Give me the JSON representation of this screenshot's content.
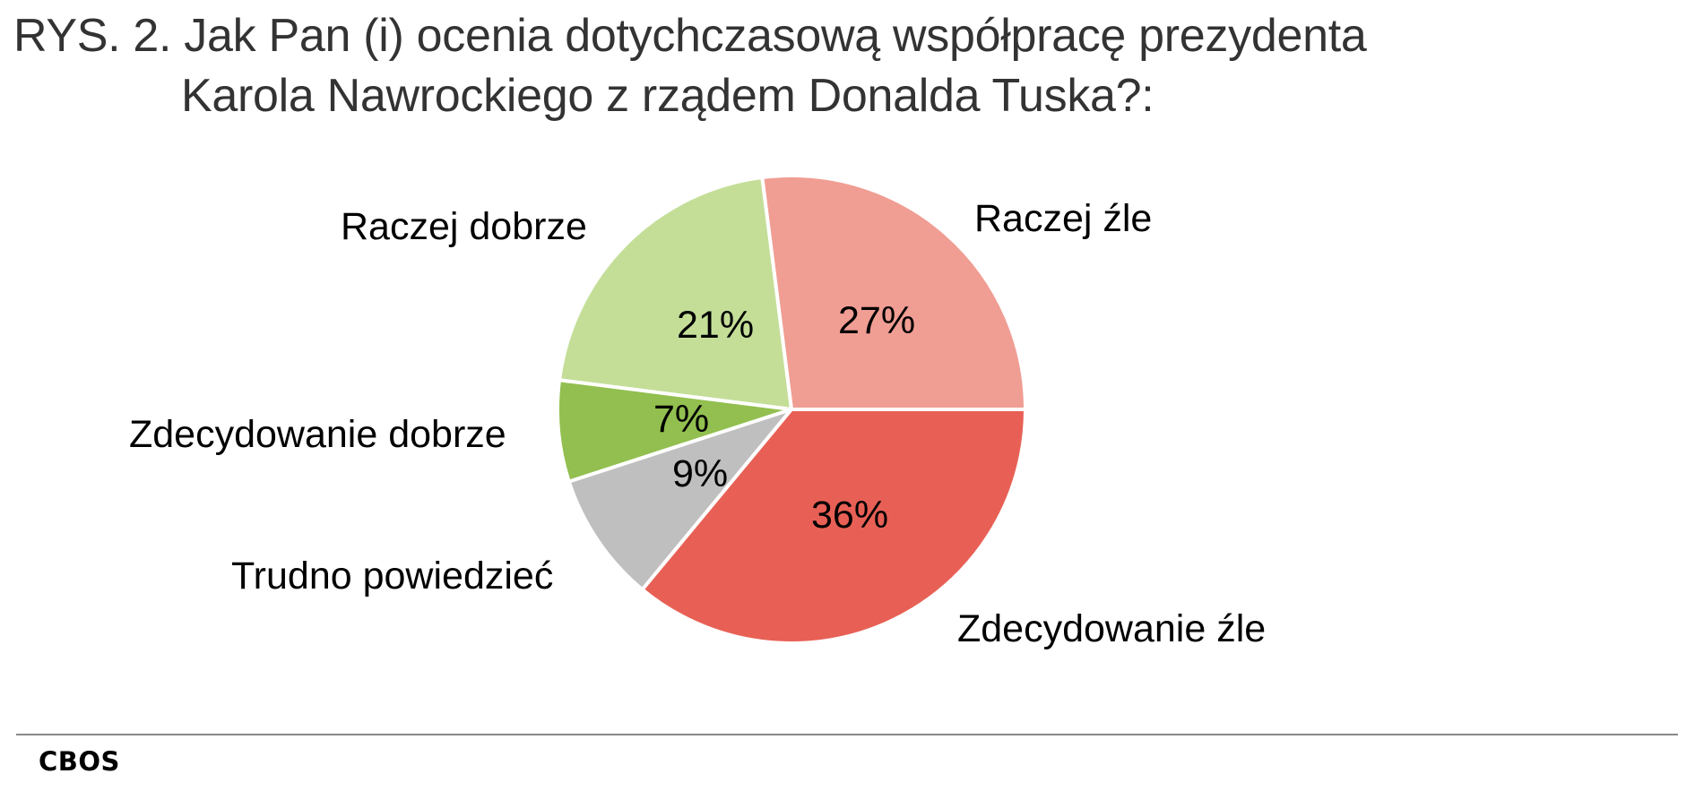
{
  "title": {
    "line1": "RYS. 2. Jak Pan (i) ocenia dotychczasową współpracę prezydenta",
    "line2": "Karola Nawrockiego z rządem Donalda Tuska?:"
  },
  "source": "CBOS",
  "chart_data": {
    "type": "pie",
    "title": "RYS. 2. Jak Pan (i) ocenia dotychczasową współpracę prezydenta Karola Nawrockiego z rządem Donalda Tuska?:",
    "categories": [
      "Raczej źle",
      "Raczej dobrze",
      "Zdecydowanie dobrze",
      "Trudno powiedzieć",
      "Zdecydowanie źle"
    ],
    "values": [
      27,
      21,
      7,
      9,
      36
    ],
    "value_labels": [
      "27%",
      "21%",
      "7%",
      "9%",
      "36%"
    ],
    "colors": [
      "#F09D93",
      "#C4DE98",
      "#92BF4F",
      "#BFBFBF",
      "#E86055"
    ],
    "start_angle_deg": 0,
    "direction": "counterclockwise",
    "legend": "none (direct labels around pie)",
    "unit": "%"
  },
  "slices": [
    {
      "label": "Raczej źle",
      "pct": "27%"
    },
    {
      "label": "Raczej dobrze",
      "pct": "21%"
    },
    {
      "label": "Zdecydowanie dobrze",
      "pct": "7%"
    },
    {
      "label": "Trudno powiedzieć",
      "pct": "9%"
    },
    {
      "label": "Zdecydowanie źle",
      "pct": "36%"
    }
  ]
}
